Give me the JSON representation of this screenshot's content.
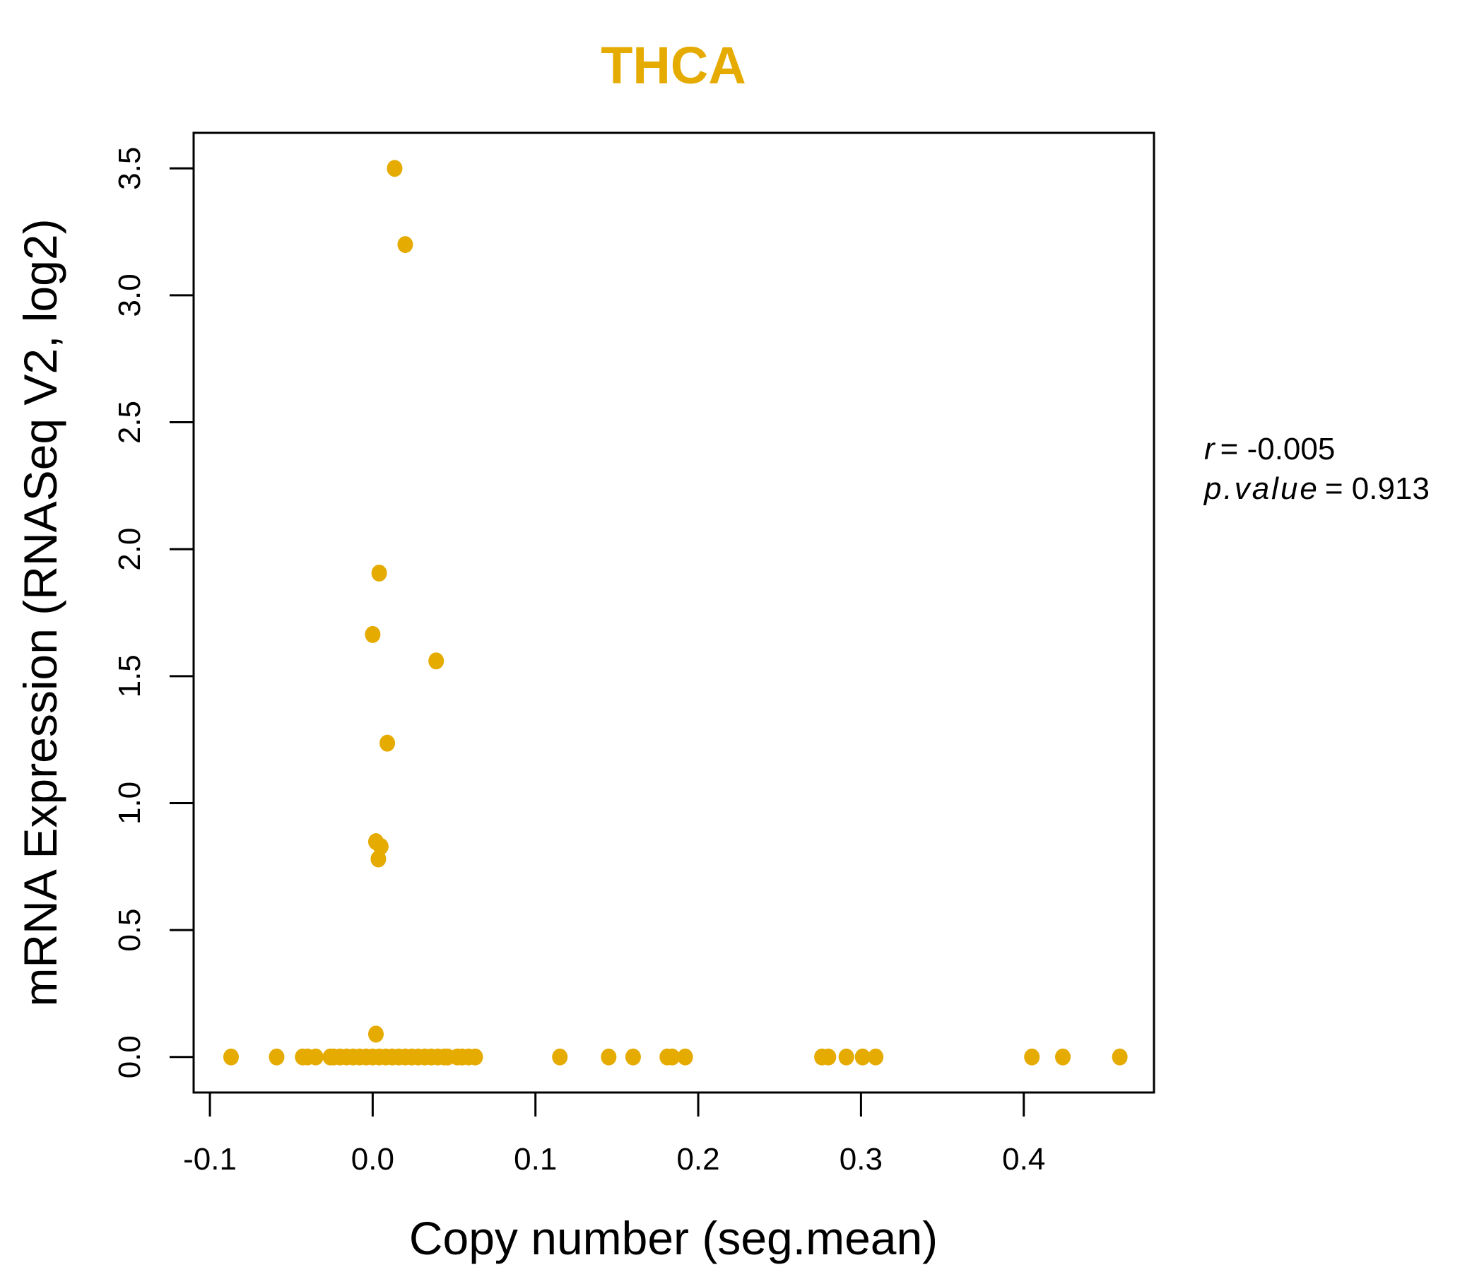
{
  "chart_data": {
    "type": "scatter",
    "title": "THCA",
    "xlabel": "Copy number (seg.mean)",
    "ylabel": "mRNA Expression (RNASeq V2, log2)",
    "xlim": [
      -0.11,
      0.48
    ],
    "ylim": [
      -0.14,
      3.64
    ],
    "x_ticks": [
      -0.1,
      0.0,
      0.1,
      0.2,
      0.3,
      0.4
    ],
    "x_tick_labels": [
      "-0.1",
      "0.0",
      "0.1",
      "0.2",
      "0.3",
      "0.4"
    ],
    "y_ticks": [
      0.0,
      0.5,
      1.0,
      1.5,
      2.0,
      2.5,
      3.0,
      3.5
    ],
    "y_tick_labels": [
      "0.0",
      "0.5",
      "1.0",
      "1.5",
      "2.0",
      "2.5",
      "3.0",
      "3.5"
    ],
    "grid": false,
    "point_color": "#E5AB00",
    "title_color": "#E5AB00",
    "annotation": {
      "r_label": "r",
      "r_value": "= -0.005",
      "p_label": "p.value",
      "p_value": "= 0.913"
    },
    "points": [
      [
        0.0135,
        3.5
      ],
      [
        0.02,
        3.2
      ],
      [
        0.004,
        1.906
      ],
      [
        0.0,
        1.664
      ],
      [
        0.039,
        1.56
      ],
      [
        0.009,
        1.236
      ],
      [
        0.002,
        0.848
      ],
      [
        0.005,
        0.829
      ],
      [
        0.0035,
        0.78
      ],
      [
        0.002,
        0.09
      ],
      [
        -0.087,
        0
      ],
      [
        -0.059,
        0
      ],
      [
        -0.043,
        0
      ],
      [
        -0.04,
        0
      ],
      [
        -0.035,
        0
      ],
      [
        -0.026,
        0
      ],
      [
        -0.024,
        0
      ],
      [
        -0.02,
        0
      ],
      [
        -0.016,
        0
      ],
      [
        -0.012,
        0
      ],
      [
        -0.008,
        0
      ],
      [
        -0.004,
        0
      ],
      [
        0.0,
        0
      ],
      [
        0.004,
        0
      ],
      [
        0.008,
        0
      ],
      [
        0.012,
        0
      ],
      [
        0.016,
        0
      ],
      [
        0.02,
        0
      ],
      [
        0.024,
        0
      ],
      [
        0.028,
        0
      ],
      [
        0.032,
        0
      ],
      [
        0.036,
        0
      ],
      [
        0.04,
        0
      ],
      [
        0.044,
        0
      ],
      [
        0.046,
        0
      ],
      [
        0.052,
        0
      ],
      [
        0.055,
        0
      ],
      [
        0.059,
        0
      ],
      [
        0.063,
        0
      ],
      [
        0.115,
        0
      ],
      [
        0.145,
        0
      ],
      [
        0.16,
        0
      ],
      [
        0.181,
        0
      ],
      [
        0.184,
        0
      ],
      [
        0.192,
        0
      ],
      [
        0.276,
        0
      ],
      [
        0.28,
        0
      ],
      [
        0.291,
        0
      ],
      [
        0.301,
        0
      ],
      [
        0.309,
        0
      ],
      [
        0.405,
        0
      ],
      [
        0.424,
        0
      ],
      [
        0.459,
        0
      ]
    ]
  }
}
